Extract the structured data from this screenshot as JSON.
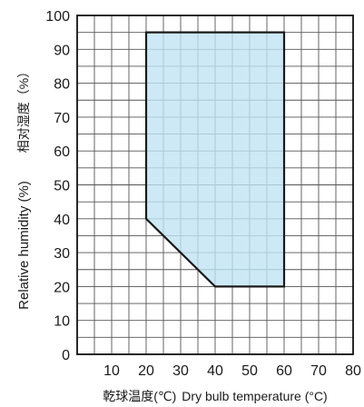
{
  "chart_data": {
    "type": "area",
    "xlabel_cn": "乾球温度(℃)",
    "xlabel": "Dry bulb temperature (°C)",
    "ylabel_cn": "相对湿度（%）",
    "ylabel": "Relative humidity (%)",
    "xlim": [
      0,
      80
    ],
    "ylim": [
      0,
      100
    ],
    "x_ticks": [
      10,
      20,
      30,
      40,
      50,
      60,
      70,
      80
    ],
    "x_tick_labels": [
      "10",
      "20",
      "30",
      "40",
      "50",
      "60",
      "70",
      "80"
    ],
    "y_ticks": [
      0,
      10,
      20,
      30,
      40,
      50,
      60,
      70,
      80,
      90,
      100
    ],
    "y_tick_labels": [
      "0",
      "10",
      "20",
      "30",
      "40",
      "50",
      "60",
      "70",
      "80",
      "90",
      "100"
    ],
    "x_minor_step": 5,
    "y_minor_step": 5,
    "grid": true,
    "region": {
      "points": [
        [
          20,
          95
        ],
        [
          60,
          95
        ],
        [
          60,
          20
        ],
        [
          40,
          20
        ],
        [
          20,
          40
        ]
      ],
      "fill": "#bfe3f2",
      "stroke": "#1a1a1a"
    },
    "grid_color": "#555555",
    "frame_color": "#111111"
  }
}
